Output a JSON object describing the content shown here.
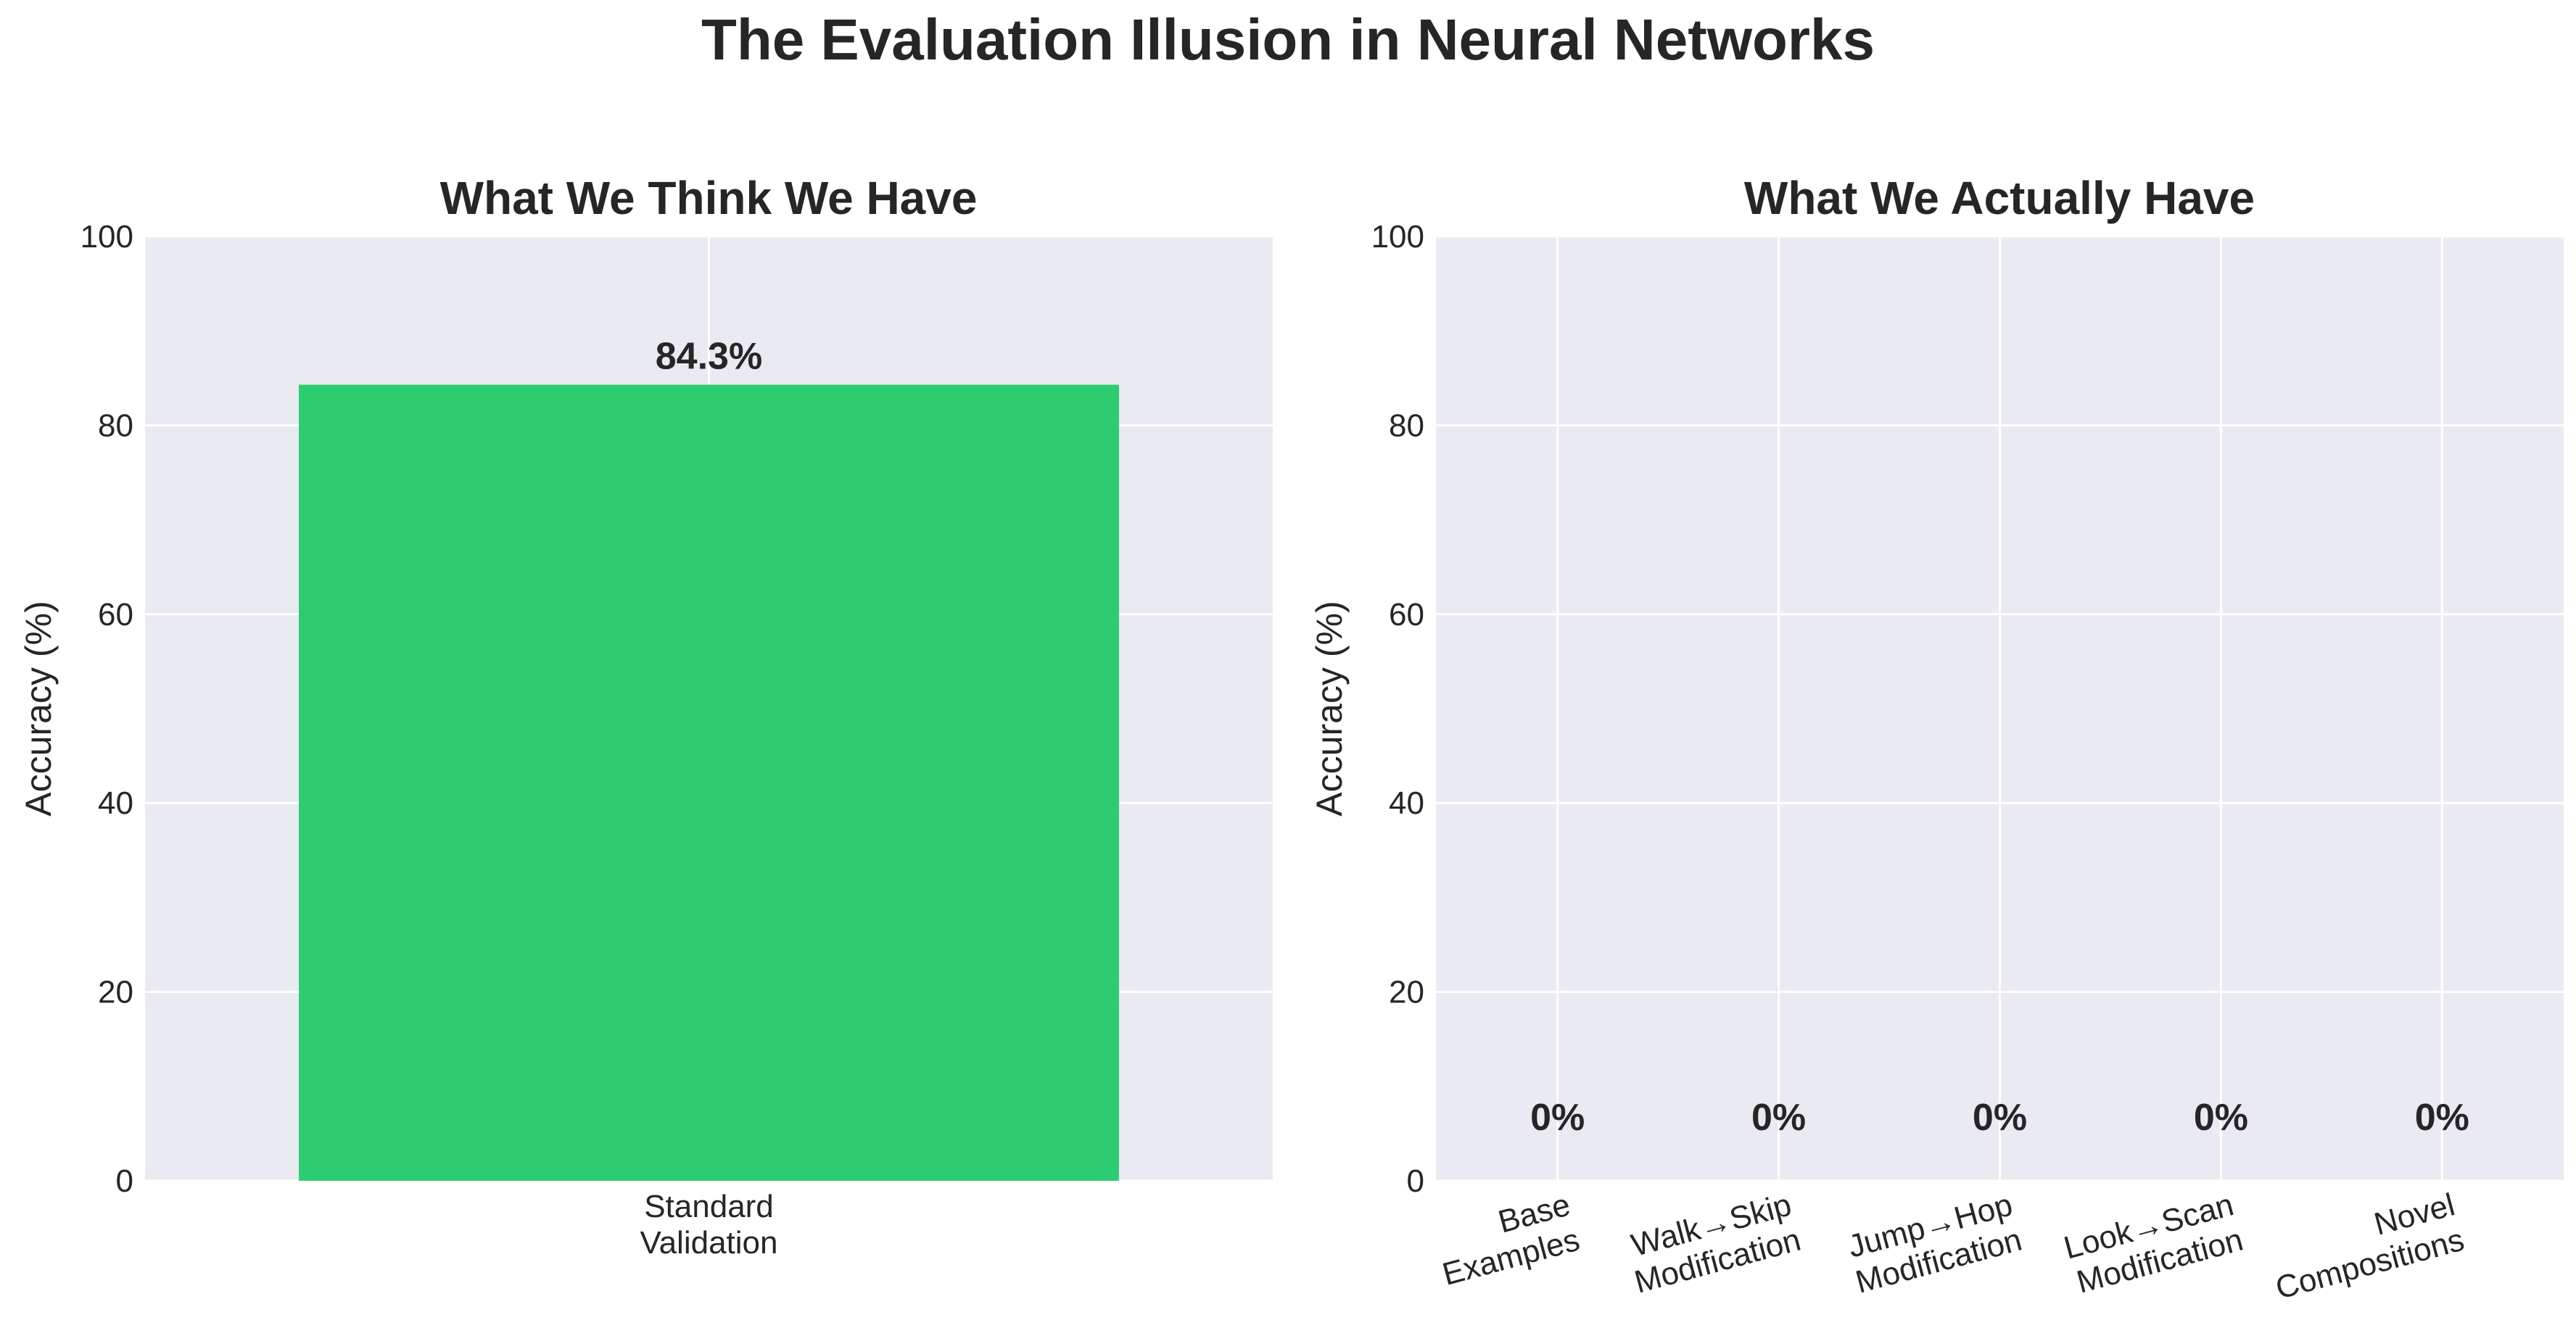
{
  "figure": {
    "suptitle": "The Evaluation Illusion in Neural Networks",
    "background": "#ffffff",
    "plot_background": "#eaeaf2",
    "grid_color": "#ffffff",
    "text_color": "#262626"
  },
  "chart_data": [
    {
      "type": "bar",
      "title": "What We Think We Have",
      "xlabel": "",
      "ylabel": "Accuracy (%)",
      "ylim": [
        0,
        100
      ],
      "yticks": [
        "0",
        "20",
        "40",
        "60",
        "80",
        "100"
      ],
      "categories": [
        [
          "Standard",
          "Validation"
        ]
      ],
      "values": [
        84.3
      ],
      "value_labels": [
        "84.3%"
      ],
      "bar_color": "#2ecc71",
      "grid": true,
      "xtick_rotation": 0
    },
    {
      "type": "bar",
      "title": "What We Actually Have",
      "xlabel": "",
      "ylabel": "Accuracy (%)",
      "ylim": [
        0,
        100
      ],
      "yticks": [
        "0",
        "20",
        "40",
        "60",
        "80",
        "100"
      ],
      "categories": [
        [
          "Base",
          "Examples"
        ],
        [
          "Walk→Skip",
          "Modification"
        ],
        [
          "Jump→Hop",
          "Modification"
        ],
        [
          "Look→Scan",
          "Modification"
        ],
        [
          "Novel",
          "Compositions"
        ]
      ],
      "values": [
        0,
        0,
        0,
        0,
        0
      ],
      "value_labels": [
        "0%",
        "0%",
        "0%",
        "0%",
        "0%"
      ],
      "bar_color": "#e74c3c",
      "grid": true,
      "xtick_rotation": -15
    }
  ]
}
